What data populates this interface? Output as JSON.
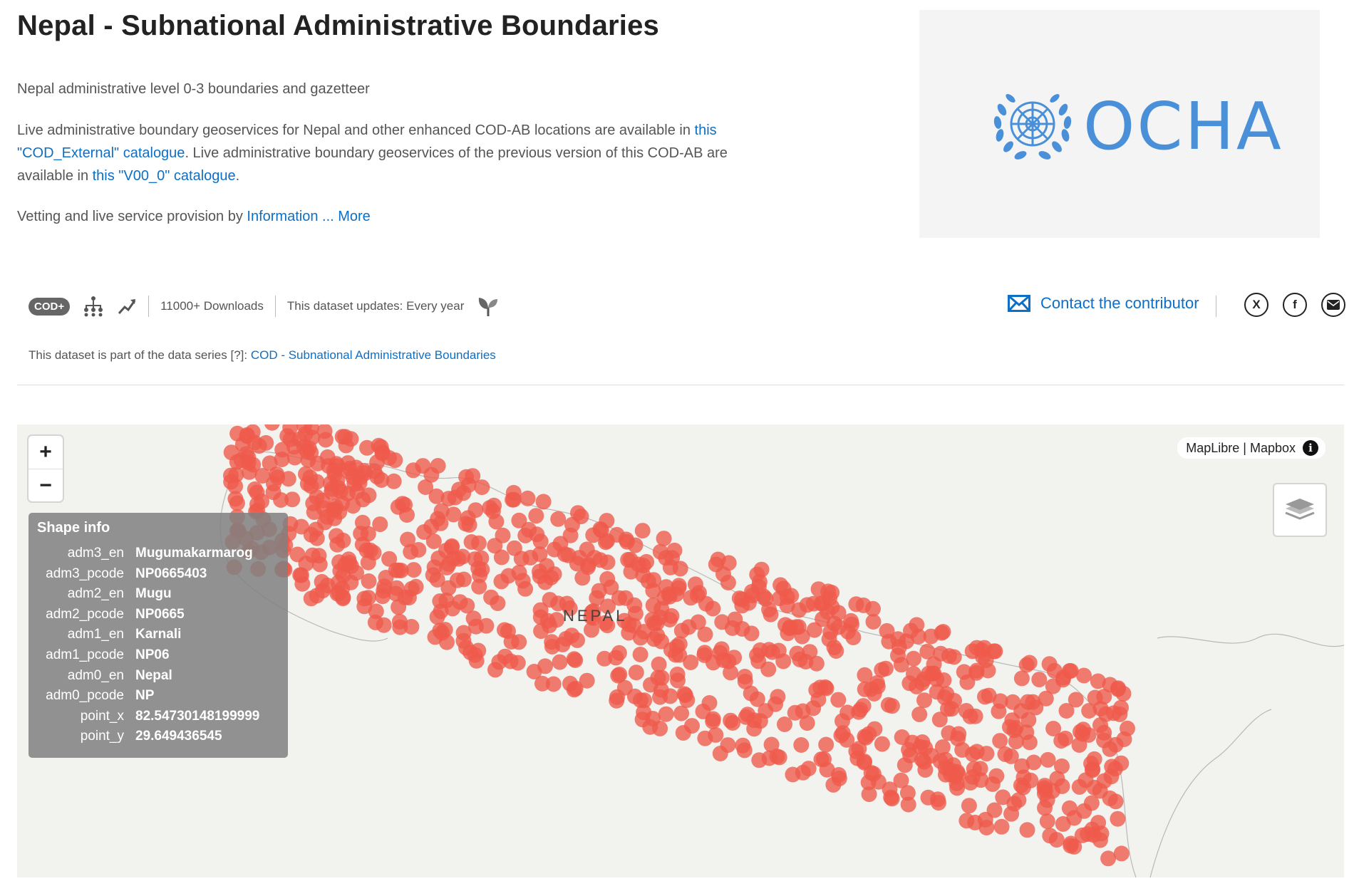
{
  "page": {
    "title": "Nepal - Subnational Administrative Boundaries",
    "subtitle": "Nepal administrative level 0-3 boundaries and gazetteer",
    "description": {
      "part1": "Live administrative boundary geoservices for Nepal and other enhanced COD-AB locations are available in ",
      "link1": "this \"COD_External\" catalogue",
      "part2": ". Live administrative boundary geoservices of the previous version of this COD-AB are available in ",
      "link2": "this \"V00_0\" catalogue",
      "part3": "."
    },
    "vetting": {
      "text": "Vetting and live service provision by ",
      "link": "Information ... More"
    }
  },
  "logo": {
    "text": "OCHA",
    "color": "#4a90d9"
  },
  "meta": {
    "badge": "COD+",
    "downloads": "11000+ Downloads",
    "updates": "This dataset updates: Every year"
  },
  "contact": {
    "label": "Contact the contributor"
  },
  "social": {
    "x": "X",
    "facebook": "f"
  },
  "series": {
    "prefix": "This dataset is part of the data series [?]: ",
    "link": "COD - Subnational Administrative Boundaries"
  },
  "map": {
    "attribution": "MapLibre | Mapbox",
    "info_symbol": "i",
    "zoom_in": "+",
    "zoom_out": "−",
    "country_label": "NEPAL",
    "point_color": "#ee5a4a",
    "shape_info": {
      "title": "Shape info",
      "rows": [
        {
          "key": "adm3_en",
          "value": "Mugumakarmarog"
        },
        {
          "key": "adm3_pcode",
          "value": "NP0665403"
        },
        {
          "key": "adm2_en",
          "value": "Mugu"
        },
        {
          "key": "adm2_pcode",
          "value": "NP0665"
        },
        {
          "key": "adm1_en",
          "value": "Karnali"
        },
        {
          "key": "adm1_pcode",
          "value": "NP06"
        },
        {
          "key": "adm0_en",
          "value": "Nepal"
        },
        {
          "key": "adm0_pcode",
          "value": "NP"
        },
        {
          "key": "point_x",
          "value": "82.54730148199999"
        },
        {
          "key": "point_y",
          "value": "29.649436545"
        }
      ]
    }
  }
}
